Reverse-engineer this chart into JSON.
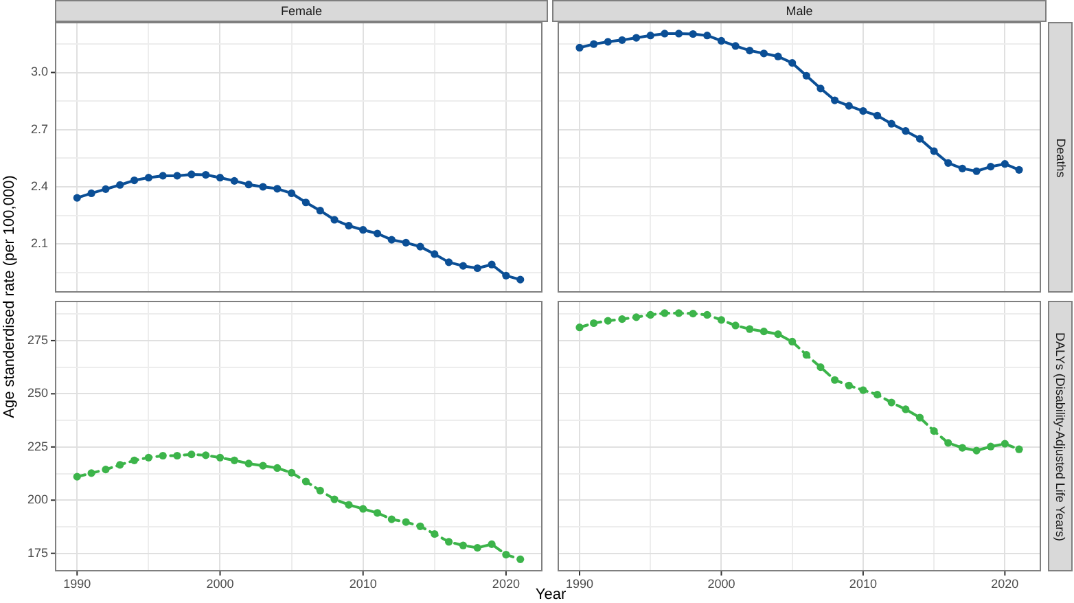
{
  "chart_data": [
    {
      "type": "line",
      "title": "Female",
      "ylabel": "Age standerdised rate (per 100,000)",
      "x": [
        1990,
        1991,
        1992,
        1993,
        1994,
        1995,
        1996,
        1997,
        1998,
        1999,
        2000,
        2001,
        2002,
        2003,
        2004,
        2005,
        2006,
        2007,
        2008,
        2009,
        2010,
        2011,
        2012,
        2013,
        2014,
        2015,
        2016,
        2017,
        2018,
        2019,
        2020,
        2021
      ],
      "series": [
        {
          "color": "#0b4f96",
          "values": [
            2.342,
            2.366,
            2.388,
            2.41,
            2.434,
            2.448,
            2.458,
            2.458,
            2.465,
            2.463,
            2.448,
            2.431,
            2.412,
            2.4,
            2.39,
            2.366,
            2.318,
            2.275,
            2.227,
            2.196,
            2.174,
            2.155,
            2.122,
            2.107,
            2.086,
            2.047,
            2.004,
            1.985,
            1.973,
            1.992,
            1.934,
            1.913
          ]
        }
      ],
      "line_style": "solid",
      "marker": "circle",
      "grid": true,
      "tick_labels": "y",
      "xlim": [
        1988.45,
        2022.55
      ],
      "xticks": [
        1990,
        {
          "value": 1995,
          "label": null
        },
        2000,
        {
          "value": 2005,
          "label": null
        },
        2010,
        {
          "value": 2015,
          "label": null
        },
        2020
      ],
      "ylim": [
        1.845,
        3.265
      ],
      "yticks": [
        {
          "value": 1.95,
          "label": null
        },
        2.1,
        {
          "value": 2.25,
          "label": null
        },
        2.4,
        {
          "value": 2.55,
          "label": null
        },
        2.7,
        {
          "value": 2.85,
          "label": null
        },
        {
          "value": 3,
          "label": "3.0"
        },
        {
          "value": 3.15,
          "label": null
        }
      ]
    },
    {
      "type": "line",
      "title": "Male",
      "y2label": "Deaths",
      "x": [
        1990,
        1991,
        1992,
        1993,
        1994,
        1995,
        1996,
        1997,
        1998,
        1999,
        2000,
        2001,
        2002,
        2003,
        2004,
        2005,
        2006,
        2007,
        2008,
        2009,
        2010,
        2011,
        2012,
        2013,
        2014,
        2015,
        2016,
        2017,
        2018,
        2019,
        2020,
        2021
      ],
      "series": [
        {
          "color": "#0b4f96",
          "values": [
            3.13,
            3.149,
            3.161,
            3.17,
            3.182,
            3.194,
            3.204,
            3.204,
            3.202,
            3.194,
            3.166,
            3.139,
            3.115,
            3.1,
            3.084,
            3.05,
            2.983,
            2.916,
            2.854,
            2.825,
            2.798,
            2.774,
            2.731,
            2.693,
            2.652,
            2.587,
            2.525,
            2.496,
            2.482,
            2.506,
            2.52,
            2.489
          ]
        }
      ],
      "line_style": "solid",
      "marker": "circle",
      "grid": true,
      "tick_labels": false,
      "xlim": [
        1988.45,
        2022.55
      ],
      "xticks": [
        1990,
        {
          "value": 1995,
          "label": null
        },
        2000,
        {
          "value": 2005,
          "label": null
        },
        2010,
        {
          "value": 2015,
          "label": null
        },
        2020
      ],
      "ylim": [
        1.845,
        3.265
      ],
      "yticks": [
        {
          "value": 1.95,
          "label": null
        },
        2.1,
        {
          "value": 2.25,
          "label": null
        },
        2.4,
        {
          "value": 2.55,
          "label": null
        },
        2.7,
        {
          "value": 2.85,
          "label": null
        },
        3,
        {
          "value": 3.15,
          "label": null
        }
      ]
    },
    {
      "type": "line",
      "xlabel": "Year",
      "x": [
        1990,
        1991,
        1992,
        1993,
        1994,
        1995,
        1996,
        1997,
        1998,
        1999,
        2000,
        2001,
        2002,
        2003,
        2004,
        2005,
        2006,
        2007,
        2008,
        2009,
        2010,
        2011,
        2012,
        2013,
        2014,
        2015,
        2016,
        2017,
        2018,
        2019,
        2020,
        2021
      ],
      "series": [
        {
          "color": "#3cb44a",
          "values": [
            211.0,
            212.7,
            214.4,
            216.6,
            218.7,
            220.0,
            220.9,
            220.9,
            221.5,
            221.1,
            220.0,
            218.7,
            217.2,
            216.2,
            215.1,
            212.9,
            208.8,
            204.5,
            200.4,
            197.8,
            195.9,
            194.0,
            191.0,
            189.7,
            187.7,
            184.1,
            180.4,
            178.7,
            177.6,
            179.3,
            174.4,
            172.2
          ]
        }
      ],
      "line_style": "dashed",
      "marker": "circle",
      "grid": true,
      "xlim": [
        1988.45,
        2022.55
      ],
      "xticks": [
        1990,
        {
          "value": 1995,
          "label": null
        },
        2000,
        {
          "value": 2005,
          "label": null
        },
        2010,
        {
          "value": 2015,
          "label": null
        },
        2020
      ],
      "ylim": [
        166.5,
        293.7
      ],
      "yticks": [
        175,
        {
          "value": 187.5,
          "label": null
        },
        200,
        {
          "value": 212.5,
          "label": null
        },
        225,
        {
          "value": 237.5,
          "label": null
        },
        250,
        {
          "value": 262.5,
          "label": null
        },
        275,
        {
          "value": 287.5,
          "label": null
        }
      ]
    },
    {
      "type": "line",
      "y2label": "DALYs (Disability-Adjusted Life Years)",
      "x": [
        1990,
        1991,
        1992,
        1993,
        1994,
        1995,
        1996,
        1997,
        1998,
        1999,
        2000,
        2001,
        2002,
        2003,
        2004,
        2005,
        2006,
        2007,
        2008,
        2009,
        2010,
        2011,
        2012,
        2013,
        2014,
        2015,
        2016,
        2017,
        2018,
        2019,
        2020,
        2021
      ],
      "series": [
        {
          "color": "#3cb44a",
          "values": [
            281.2,
            283.2,
            284.3,
            285.1,
            286.0,
            287.1,
            287.9,
            287.9,
            287.7,
            287.1,
            284.7,
            282.1,
            280.4,
            279.3,
            278.0,
            274.5,
            268.3,
            262.5,
            256.5,
            253.9,
            251.7,
            249.6,
            245.9,
            242.7,
            238.8,
            232.5,
            226.9,
            224.6,
            223.3,
            225.2,
            226.5,
            223.9
          ]
        }
      ],
      "line_style": "dashed",
      "marker": "circle",
      "grid": true,
      "tick_labels": "x",
      "xlim": [
        1988.45,
        2022.55
      ],
      "xticks": [
        1990,
        {
          "value": 1995,
          "label": null
        },
        2000,
        {
          "value": 2005,
          "label": null
        },
        2010,
        {
          "value": 2015,
          "label": null
        },
        2020
      ],
      "ylim": [
        166.5,
        293.7
      ],
      "yticks": [
        175,
        {
          "value": 187.5,
          "label": null
        },
        200,
        {
          "value": 212.5,
          "label": null
        },
        225,
        {
          "value": 237.5,
          "label": null
        },
        250,
        {
          "value": 262.5,
          "label": null
        },
        275,
        {
          "value": 287.5,
          "label": null
        }
      ]
    }
  ]
}
